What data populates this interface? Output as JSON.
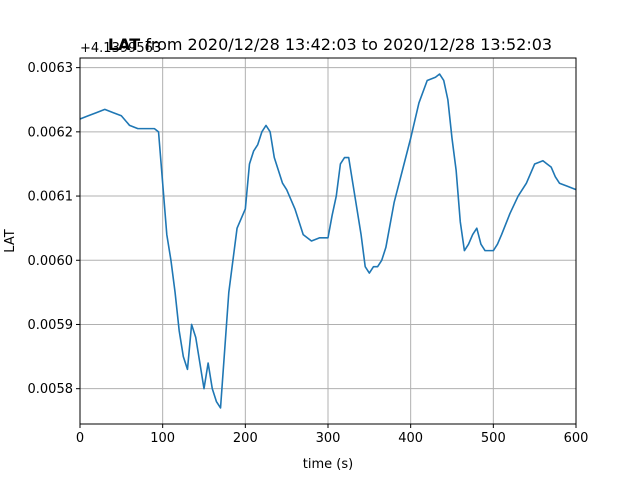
{
  "chart_data": {
    "type": "line",
    "title": {
      "bold": "LAT",
      "rest": " from 2020/12/28 13:42:03 to 2020/12/28 13:52:03"
    },
    "offset_text": "+4.1399563",
    "xlabel": "time (s)",
    "ylabel": "LAT",
    "xlim": [
      0,
      600
    ],
    "ylim": [
      0.005745,
      0.006315
    ],
    "grid": true,
    "x_ticks": [
      0,
      100,
      200,
      300,
      400,
      500,
      600
    ],
    "x_tick_labels": [
      "0",
      "100",
      "200",
      "300",
      "400",
      "500",
      "600"
    ],
    "y_ticks": [
      0.0058,
      0.0059,
      0.006,
      0.0061,
      0.0062,
      0.0063
    ],
    "y_tick_labels": [
      "0.0058",
      "0.0059",
      "0.0060",
      "0.0061",
      "0.0062",
      "0.0063"
    ],
    "series": [
      {
        "color": "#1f77b4",
        "x": [
          0,
          10,
          20,
          30,
          40,
          50,
          60,
          70,
          80,
          90,
          95,
          100,
          105,
          110,
          115,
          120,
          125,
          130,
          135,
          140,
          145,
          150,
          155,
          160,
          165,
          170,
          175,
          180,
          185,
          190,
          200,
          205,
          210,
          215,
          220,
          225,
          230,
          235,
          240,
          245,
          250,
          260,
          270,
          280,
          290,
          300,
          305,
          310,
          315,
          320,
          325,
          330,
          335,
          340,
          345,
          350,
          355,
          360,
          365,
          370,
          380,
          390,
          400,
          410,
          420,
          430,
          435,
          440,
          445,
          450,
          455,
          460,
          465,
          470,
          475,
          480,
          485,
          490,
          495,
          500,
          505,
          510,
          520,
          530,
          540,
          550,
          560,
          565,
          570,
          575,
          580,
          590,
          600
        ],
        "y": [
          0.00622,
          0.006225,
          0.00623,
          0.006235,
          0.00623,
          0.006225,
          0.00621,
          0.006205,
          0.006205,
          0.006205,
          0.0062,
          0.00612,
          0.00604,
          0.006,
          0.00595,
          0.00589,
          0.00585,
          0.00583,
          0.0059,
          0.00588,
          0.00584,
          0.0058,
          0.00584,
          0.0058,
          0.00578,
          0.00577,
          0.00586,
          0.00595,
          0.006,
          0.00605,
          0.00608,
          0.00615,
          0.00617,
          0.00618,
          0.0062,
          0.00621,
          0.0062,
          0.00616,
          0.00614,
          0.00612,
          0.00611,
          0.00608,
          0.00604,
          0.00603,
          0.006035,
          0.006035,
          0.00607,
          0.0061,
          0.00615,
          0.00616,
          0.00616,
          0.00612,
          0.00608,
          0.00604,
          0.00599,
          0.00598,
          0.00599,
          0.00599,
          0.006,
          0.00602,
          0.00609,
          0.00614,
          0.00619,
          0.006245,
          0.00628,
          0.006285,
          0.00629,
          0.00628,
          0.00625,
          0.00619,
          0.00614,
          0.00606,
          0.006015,
          0.006025,
          0.00604,
          0.00605,
          0.006025,
          0.006015,
          0.006015,
          0.006015,
          0.006025,
          0.00604,
          0.0060725,
          0.0061,
          0.00612,
          0.00615,
          0.006155,
          0.00615,
          0.006145,
          0.00613,
          0.00612,
          0.006115,
          0.00611
        ]
      }
    ]
  }
}
